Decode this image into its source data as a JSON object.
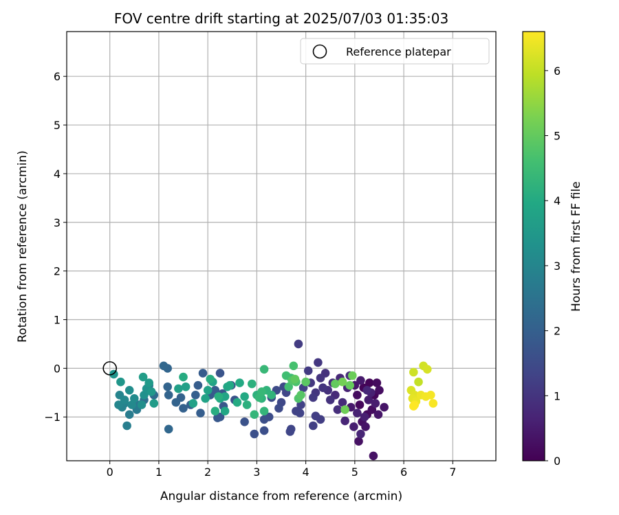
{
  "chart_data": {
    "type": "scatter",
    "title": "FOV centre drift starting at 2025/07/03 01:35:03",
    "xlabel": "Angular distance from reference (arcmin)",
    "ylabel": "Rotation from reference (arcmin)",
    "xlim": [
      -0.88,
      7.88
    ],
    "ylim": [
      -1.9,
      6.92
    ],
    "xticks": [
      0,
      1,
      2,
      3,
      4,
      5,
      6,
      7
    ],
    "yticks": [
      -1,
      0,
      1,
      2,
      3,
      4,
      5,
      6
    ],
    "xtick_labels": [
      "0",
      "1",
      "2",
      "3",
      "4",
      "5",
      "6",
      "7"
    ],
    "ytick_labels": [
      "−1",
      "0",
      "1",
      "2",
      "3",
      "4",
      "5",
      "6"
    ],
    "grid": true,
    "legend": {
      "placement": "top-right",
      "entries": [
        {
          "label": "Reference platepar",
          "marker": "open-circle",
          "x": 0,
          "y": 0
        }
      ]
    },
    "colorbar": {
      "label": "Hours from first FF file",
      "colormap": "viridis",
      "range": [
        0,
        6.6
      ],
      "ticks": [
        0,
        1,
        2,
        3,
        4,
        5,
        6
      ],
      "tick_labels": [
        "0",
        "1",
        "2",
        "3",
        "4",
        "5",
        "6"
      ]
    },
    "points": [
      [
        5.3,
        -0.3,
        0.05
      ],
      [
        5.18,
        -0.4,
        0.08
      ],
      [
        5.4,
        -0.55,
        0.1
      ],
      [
        5.1,
        -0.75,
        0.12
      ],
      [
        5.25,
        -0.95,
        0.15
      ],
      [
        5.45,
        -0.3,
        0.18
      ],
      [
        5.05,
        -0.55,
        0.2
      ],
      [
        5.35,
        -0.85,
        0.22
      ],
      [
        5.5,
        -0.45,
        0.25
      ],
      [
        5.15,
        -1.1,
        0.28
      ],
      [
        5.08,
        -1.5,
        0.3
      ],
      [
        5.38,
        -1.8,
        0.32
      ],
      [
        5.22,
        -1.2,
        0.35
      ],
      [
        5.6,
        -0.8,
        0.38
      ],
      [
        5.48,
        -0.95,
        0.4
      ],
      [
        5.0,
        -0.35,
        0.42
      ],
      [
        4.92,
        -0.8,
        0.45
      ],
      [
        5.12,
        -0.25,
        0.48
      ],
      [
        5.28,
        -0.65,
        0.5
      ],
      [
        5.42,
        -0.72,
        0.52
      ],
      [
        4.98,
        -1.2,
        0.55
      ],
      [
        5.2,
        -1.0,
        0.58
      ],
      [
        5.33,
        -0.5,
        0.6
      ],
      [
        5.05,
        -0.92,
        0.62
      ],
      [
        4.85,
        -0.4,
        0.65
      ],
      [
        4.8,
        -1.08,
        0.68
      ],
      [
        5.12,
        -1.35,
        0.7
      ],
      [
        5.25,
        -0.45,
        0.72
      ],
      [
        4.7,
        -0.2,
        0.75
      ],
      [
        4.6,
        -0.55,
        0.78
      ],
      [
        4.75,
        -0.7,
        0.8
      ],
      [
        4.55,
        -0.3,
        0.82
      ],
      [
        4.9,
        -0.15,
        0.85
      ],
      [
        4.65,
        -0.85,
        0.88
      ],
      [
        4.45,
        -0.45,
        0.9
      ],
      [
        4.4,
        -0.1,
        0.92
      ],
      [
        4.5,
        -0.65,
        0.95
      ],
      [
        4.3,
        -0.2,
        0.98
      ],
      [
        4.35,
        -0.4,
        1.0
      ],
      [
        4.2,
        -0.5,
        1.02
      ],
      [
        4.25,
        0.12,
        1.05
      ],
      [
        4.1,
        -0.3,
        1.08
      ],
      [
        4.15,
        -0.6,
        1.1
      ],
      [
        4.05,
        -0.05,
        1.12
      ],
      [
        3.85,
        0.5,
        1.15
      ],
      [
        4.3,
        -1.05,
        1.18
      ],
      [
        4.2,
        -0.98,
        1.2
      ],
      [
        4.15,
        -1.18,
        1.22
      ],
      [
        3.95,
        -0.4,
        1.25
      ],
      [
        3.9,
        -0.75,
        1.28
      ],
      [
        3.8,
        -0.88,
        1.3
      ],
      [
        3.88,
        -0.92,
        1.32
      ],
      [
        3.7,
        -1.25,
        1.35
      ],
      [
        3.68,
        -1.3,
        1.38
      ],
      [
        3.6,
        -0.5,
        1.4
      ],
      [
        3.5,
        -0.7,
        1.42
      ],
      [
        3.55,
        -0.38,
        1.45
      ],
      [
        3.4,
        -0.45,
        1.48
      ],
      [
        3.45,
        -0.82,
        1.5
      ],
      [
        3.3,
        -0.6,
        1.52
      ],
      [
        3.25,
        -1.0,
        1.55
      ],
      [
        3.15,
        -1.05,
        1.58
      ],
      [
        3.15,
        -1.28,
        1.6
      ],
      [
        2.95,
        -1.35,
        1.62
      ],
      [
        2.75,
        -1.1,
        1.65
      ],
      [
        2.55,
        -0.65,
        1.68
      ],
      [
        2.48,
        -0.35,
        1.7
      ],
      [
        2.25,
        -0.1,
        1.72
      ],
      [
        2.3,
        -0.52,
        1.75
      ],
      [
        2.32,
        -0.78,
        1.78
      ],
      [
        2.2,
        -1.02,
        1.8
      ],
      [
        2.25,
        -1.0,
        1.82
      ],
      [
        2.05,
        -0.55,
        1.85
      ],
      [
        2.15,
        -0.45,
        1.88
      ],
      [
        1.9,
        -0.1,
        1.9
      ],
      [
        1.8,
        -0.35,
        1.92
      ],
      [
        1.85,
        -0.92,
        1.95
      ],
      [
        1.75,
        -0.55,
        1.98
      ],
      [
        1.65,
        -0.75,
        2.0
      ],
      [
        1.5,
        -0.82,
        2.02
      ],
      [
        1.45,
        -0.6,
        2.05
      ],
      [
        1.35,
        -0.7,
        2.08
      ],
      [
        1.2,
        -0.55,
        2.1
      ],
      [
        1.18,
        -0.38,
        2.12
      ],
      [
        1.18,
        0.0,
        2.15
      ],
      [
        1.1,
        0.05,
        2.18
      ],
      [
        1.2,
        -1.25,
        2.2
      ],
      [
        0.9,
        -0.55,
        2.3
      ],
      [
        0.7,
        -0.65,
        2.4
      ],
      [
        0.6,
        -0.75,
        2.5
      ],
      [
        0.8,
        -0.35,
        2.6
      ],
      [
        0.55,
        -0.85,
        2.7
      ],
      [
        0.4,
        -0.95,
        2.75
      ],
      [
        0.35,
        -1.18,
        2.8
      ],
      [
        0.3,
        -0.72,
        2.85
      ],
      [
        0.25,
        -0.8,
        2.9
      ],
      [
        0.2,
        -0.55,
        2.95
      ],
      [
        0.18,
        -0.75,
        3.0
      ],
      [
        0.3,
        -0.65,
        3.05
      ],
      [
        0.45,
        -0.75,
        3.1
      ],
      [
        0.5,
        -0.62,
        3.15
      ],
      [
        0.4,
        -0.45,
        3.2
      ],
      [
        0.65,
        -0.75,
        3.25
      ],
      [
        0.7,
        -0.55,
        3.3
      ],
      [
        0.75,
        -0.42,
        3.35
      ],
      [
        0.08,
        -0.12,
        3.4
      ],
      [
        0.22,
        -0.28,
        3.45
      ],
      [
        0.85,
        -0.48,
        3.5
      ],
      [
        0.8,
        -0.3,
        3.55
      ],
      [
        0.9,
        -0.72,
        3.6
      ],
      [
        0.68,
        -0.18,
        3.65
      ],
      [
        1.4,
        -0.42,
        3.7
      ],
      [
        1.55,
        -0.38,
        3.72
      ],
      [
        1.7,
        -0.72,
        3.75
      ],
      [
        1.95,
        -0.62,
        3.78
      ],
      [
        2.0,
        -0.45,
        3.8
      ],
      [
        2.1,
        -0.28,
        3.82
      ],
      [
        2.35,
        -0.58,
        3.85
      ],
      [
        2.4,
        -0.38,
        3.88
      ],
      [
        2.25,
        -0.62,
        3.9
      ],
      [
        2.35,
        -0.88,
        3.92
      ],
      [
        2.45,
        -0.35,
        3.95
      ],
      [
        2.65,
        -0.3,
        3.98
      ],
      [
        2.75,
        -0.58,
        4.0
      ],
      [
        2.6,
        -0.7,
        4.02
      ],
      [
        1.5,
        -0.18,
        4.05
      ],
      [
        2.05,
        -0.22,
        4.08
      ],
      [
        2.15,
        -0.88,
        4.1
      ],
      [
        2.22,
        -0.58,
        4.12
      ],
      [
        2.8,
        -0.75,
        4.15
      ],
      [
        2.9,
        -0.32,
        4.18
      ],
      [
        3.0,
        -0.55,
        4.2
      ],
      [
        3.1,
        -0.62,
        4.22
      ],
      [
        3.2,
        -0.45,
        4.25
      ],
      [
        3.3,
        -0.55,
        4.28
      ],
      [
        3.15,
        -0.88,
        4.3
      ],
      [
        2.95,
        -0.95,
        4.32
      ],
      [
        3.05,
        -0.6,
        4.35
      ],
      [
        3.1,
        -0.48,
        4.38
      ],
      [
        3.15,
        -0.02,
        4.4
      ],
      [
        3.7,
        -0.2,
        4.5
      ],
      [
        3.6,
        -0.15,
        4.55
      ],
      [
        3.65,
        -0.38,
        4.6
      ],
      [
        3.75,
        0.05,
        4.65
      ],
      [
        3.8,
        -0.28,
        4.7
      ],
      [
        3.85,
        -0.62,
        4.75
      ],
      [
        3.72,
        -0.25,
        4.8
      ],
      [
        3.9,
        -0.55,
        4.85
      ],
      [
        4.0,
        -0.28,
        4.9
      ],
      [
        3.78,
        -0.22,
        4.95
      ],
      [
        4.6,
        -0.32,
        5.0
      ],
      [
        4.9,
        -0.35,
        5.05
      ],
      [
        4.95,
        -0.15,
        5.1
      ],
      [
        4.8,
        -0.85,
        5.15
      ],
      [
        4.75,
        -0.28,
        5.2
      ],
      [
        6.3,
        -0.28,
        6.0
      ],
      [
        6.2,
        -0.08,
        6.1
      ],
      [
        6.4,
        0.05,
        6.15
      ],
      [
        6.48,
        -0.02,
        6.2
      ],
      [
        6.15,
        -0.45,
        6.25
      ],
      [
        6.22,
        -0.55,
        6.3
      ],
      [
        6.18,
        -0.62,
        6.35
      ],
      [
        6.25,
        -0.68,
        6.4
      ],
      [
        6.35,
        -0.55,
        6.45
      ],
      [
        6.45,
        -0.58,
        6.5
      ],
      [
        6.55,
        -0.55,
        6.52
      ],
      [
        6.6,
        -0.72,
        6.55
      ],
      [
        6.22,
        -0.75,
        6.58
      ],
      [
        6.2,
        -0.78,
        6.6
      ]
    ]
  }
}
